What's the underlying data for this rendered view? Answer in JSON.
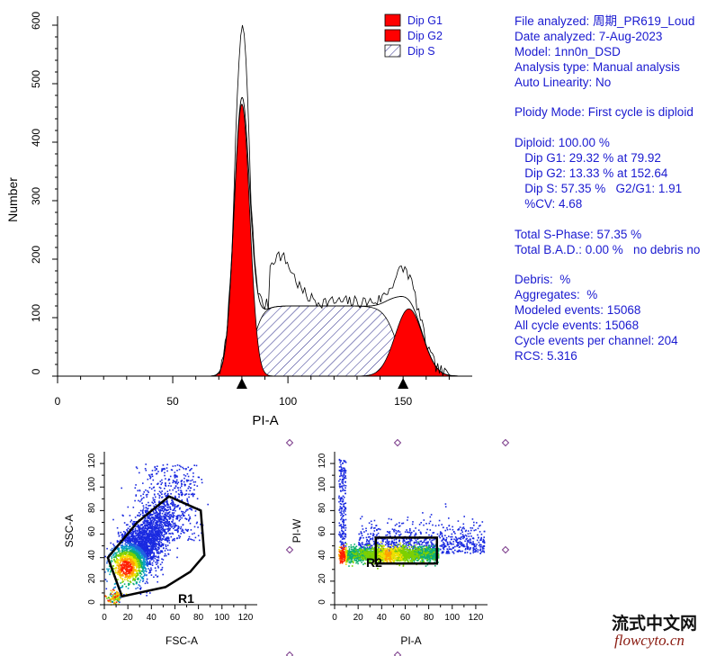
{
  "histogram": {
    "chart_data": {
      "type": "area",
      "xlabel": "PI-A",
      "ylabel": "Number",
      "xlim": [
        0,
        180
      ],
      "ylim": [
        0,
        600
      ],
      "x_ticks": [
        "0",
        "50",
        "100",
        "150"
      ],
      "y_ticks": [
        "0",
        "100",
        "200",
        "300",
        "400",
        "500",
        "600"
      ],
      "legend": [
        "Dip G1",
        "Dip G2",
        "Dip S"
      ],
      "legend_position": "top-right",
      "peak_markers_x": [
        80,
        150
      ],
      "series": [
        {
          "name": "Dip G1",
          "color": "#ff0000",
          "center": 80,
          "height": 465,
          "fwhm": 8.0
        },
        {
          "name": "Dip G2",
          "color": "#ff0000",
          "center": 152.5,
          "height": 115,
          "fwhm": 14
        },
        {
          "name": "Dip S",
          "fill": "hatched",
          "x_start": 80,
          "x_end": 152,
          "plateau": 120
        }
      ]
    }
  },
  "info_lines": [
    "File analyzed: 周期_PR619_Loud",
    "Date analyzed: 7-Aug-2023",
    "Model: 1nn0n_DSD",
    "Analysis type: Manual analysis",
    "Auto Linearity: No",
    "",
    "Ploidy Mode: First cycle is diploid",
    "",
    "Diploid: 100.00 %",
    "   Dip G1: 29.32 % at 79.92",
    "   Dip G2: 13.33 % at 152.64",
    "   Dip S: 57.35 %   G2/G1: 1.91",
    "   %CV: 4.68",
    "",
    "Total S-Phase: 57.35 %",
    "Total B.A.D.: 0.00 %   no debris no",
    "",
    "Debris:  %",
    "Aggregates:  %",
    "Modeled events: 15068",
    "All cycle events: 15068",
    "Cycle events per channel: 204",
    "RCS: 5.316"
  ],
  "scatter1": {
    "chart_data": {
      "type": "scatter",
      "xlabel": "FSC-A",
      "ylabel": "SSC-A",
      "xlim": [
        0,
        130
      ],
      "ylim": [
        0,
        130
      ],
      "x_ticks": [
        "0",
        "20",
        "40",
        "60",
        "80",
        "100",
        "120"
      ],
      "y_ticks": [
        "0",
        "20",
        "40",
        "60",
        "80",
        "100",
        "120"
      ],
      "gate_label": "R1",
      "gate_polygon": [
        [
          3,
          40
        ],
        [
          28,
          70
        ],
        [
          55,
          92
        ],
        [
          82,
          80
        ],
        [
          85,
          42
        ],
        [
          73,
          28
        ],
        [
          52,
          15
        ],
        [
          15,
          7
        ]
      ]
    }
  },
  "scatter2": {
    "chart_data": {
      "type": "scatter",
      "xlabel": "PI-A",
      "ylabel": "PI-W",
      "xlim": [
        0,
        130
      ],
      "ylim": [
        0,
        130
      ],
      "x_ticks": [
        "0",
        "20",
        "40",
        "60",
        "80",
        "100",
        "120"
      ],
      "y_ticks": [
        "0",
        "20",
        "40",
        "60",
        "80",
        "100",
        "120"
      ],
      "gate_label": "R2",
      "gate_rect": [
        35,
        35,
        87,
        57
      ]
    }
  },
  "watermark": {
    "line1": "流式中文网",
    "line2": "flowcyto.cn"
  }
}
